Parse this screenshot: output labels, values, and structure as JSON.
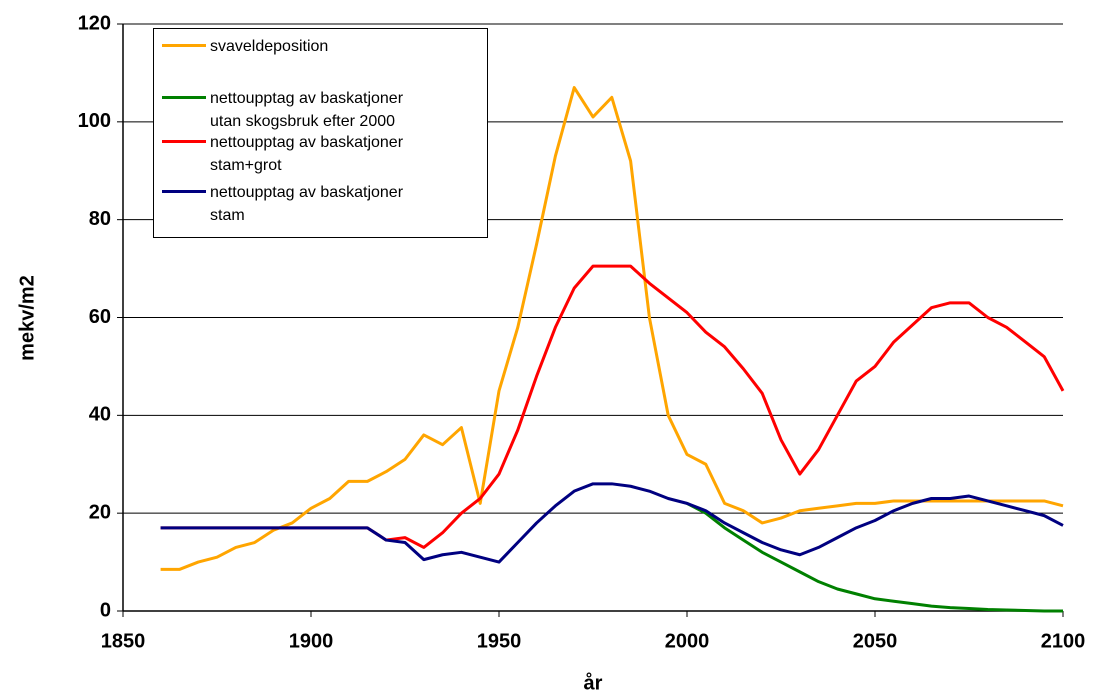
{
  "chart_data": {
    "type": "line",
    "xlabel": "år",
    "ylabel": "mekv/m2",
    "x": [
      1860,
      1865,
      1870,
      1875,
      1880,
      1885,
      1890,
      1895,
      1900,
      1905,
      1910,
      1915,
      1920,
      1925,
      1930,
      1935,
      1940,
      1945,
      1950,
      1955,
      1960,
      1965,
      1970,
      1975,
      1980,
      1985,
      1990,
      1995,
      2000,
      2005,
      2010,
      2015,
      2020,
      2025,
      2030,
      2035,
      2040,
      2045,
      2050,
      2055,
      2060,
      2065,
      2070,
      2075,
      2080,
      2085,
      2090,
      2095,
      2100
    ],
    "series": [
      {
        "name": "svaveldeposition",
        "color": "#ffa500",
        "values": [
          8.5,
          8.5,
          10,
          11,
          13,
          14,
          16.5,
          18,
          21,
          23,
          26.5,
          26.5,
          28.5,
          31,
          36,
          34,
          37.5,
          22,
          45,
          58,
          75,
          93,
          107,
          101,
          105,
          92,
          60,
          40,
          32,
          30,
          22,
          20.5,
          18,
          19,
          20.5,
          21,
          21.5,
          22,
          22,
          22.5,
          22.5,
          22.5,
          22.5,
          22.5,
          22.5,
          22.5,
          22.5,
          22.5,
          21.5
        ]
      },
      {
        "name": "nettoupptag av baskatjoner utan skogsbruk efter 2000",
        "color": "#008000",
        "values": [
          null,
          null,
          null,
          null,
          null,
          null,
          null,
          null,
          null,
          null,
          null,
          null,
          null,
          null,
          null,
          null,
          null,
          null,
          null,
          null,
          null,
          null,
          null,
          null,
          null,
          null,
          null,
          null,
          22,
          20,
          17,
          14.5,
          12,
          10,
          8,
          6,
          4.5,
          3.5,
          2.5,
          2,
          1.5,
          1,
          0.7,
          0.5,
          0.3,
          0.2,
          0.1,
          0,
          0
        ]
      },
      {
        "name": "nettoupptag av baskatjoner stam+grot",
        "color": "#ff0000",
        "values": [
          17,
          17,
          17,
          17,
          17,
          17,
          17,
          17,
          17,
          17,
          17,
          17,
          14.5,
          15,
          13,
          16,
          20,
          23,
          28,
          37,
          48,
          58,
          66,
          70.5,
          70.5,
          70.5,
          67,
          64,
          61,
          57,
          54,
          49.5,
          44.5,
          35,
          28,
          33,
          40,
          47,
          50,
          55,
          58.5,
          62,
          63,
          63,
          60,
          58,
          55,
          52,
          45
        ]
      },
      {
        "name": "nettoupptag av baskatjoner stam",
        "color": "#000080",
        "values": [
          17,
          17,
          17,
          17,
          17,
          17,
          17,
          17,
          17,
          17,
          17,
          17,
          14.5,
          14,
          10.5,
          11.5,
          12,
          11,
          10,
          14,
          18,
          21.5,
          24.5,
          26,
          26,
          25.5,
          24.5,
          23,
          22,
          20.5,
          18,
          16,
          14,
          12.5,
          11.5,
          13,
          15,
          17,
          18.5,
          20.5,
          22,
          23,
          23,
          23.5,
          22.5,
          21.5,
          20.5,
          19.5,
          17.5
        ]
      }
    ],
    "xlim": [
      1850,
      2100
    ],
    "xticks": [
      1850,
      1900,
      1950,
      2000,
      2050,
      2100
    ],
    "ylim": [
      0,
      120
    ],
    "yticks": [
      0,
      20,
      40,
      60,
      80,
      100,
      120
    ],
    "grid": true,
    "legend": "upper left"
  }
}
